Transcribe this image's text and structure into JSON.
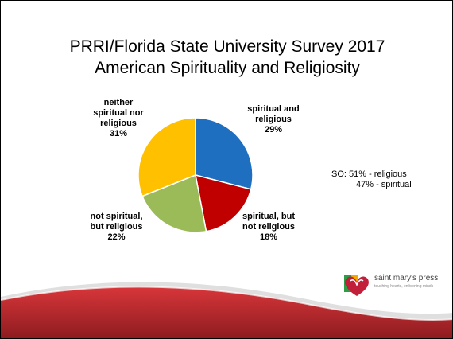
{
  "slide": {
    "title_line1": "PRRI/Florida State University Survey 2017",
    "title_line2": "American Spirituality and Religiosity",
    "note_line1": "SO: 51% - religious",
    "note_line2": "47% - spiritual",
    "logo_text": "saint mary's press",
    "logo_tagline": "touching hearts, enlivening minds"
  },
  "chart_data": {
    "type": "pie",
    "slices": [
      {
        "label_line1": "spiritual and",
        "label_line2": "religious",
        "pct_label": "29%",
        "value": 29,
        "color": "#1f6fc0"
      },
      {
        "label_line1": "spiritual, but",
        "label_line2": "not religious",
        "pct_label": "18%",
        "value": 18,
        "color": "#c00000"
      },
      {
        "label_line1": "not spiritual,",
        "label_line2": "but religious",
        "pct_label": "22%",
        "value": 22,
        "color": "#9bbb59"
      },
      {
        "label_line1": "neither",
        "label_line2": "spiritual nor",
        "label_line3": "religious",
        "pct_label": "31%",
        "value": 31,
        "color": "#ffc000"
      }
    ],
    "start_angle_deg": 0,
    "direction": "clockwise"
  },
  "colors": {
    "wave_red": "#c0282d",
    "wave_dark": "#7a1a1e"
  }
}
